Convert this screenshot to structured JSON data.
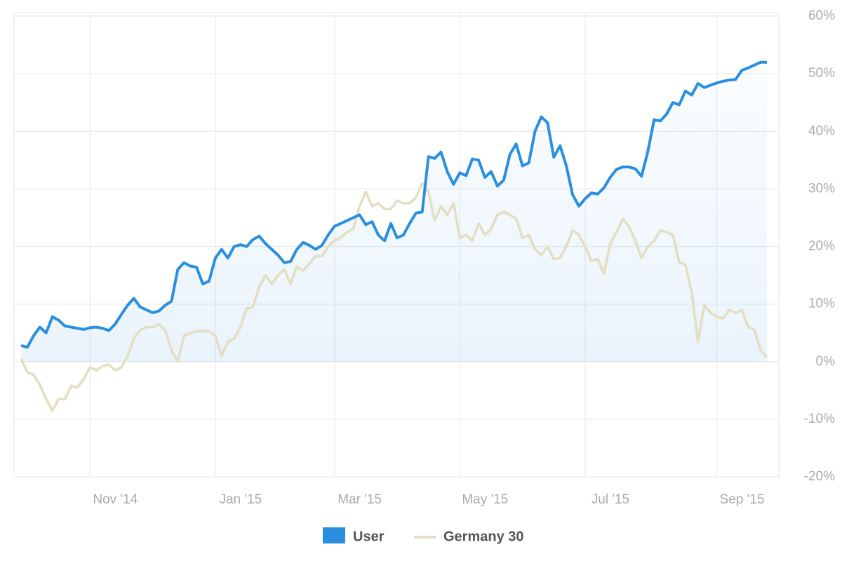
{
  "chart_data": {
    "type": "line",
    "categories": [
      null,
      null,
      null,
      null,
      null,
      null,
      null,
      null,
      null,
      null,
      null,
      "Nov '14",
      null,
      null,
      null,
      null,
      null,
      null,
      null,
      null,
      null,
      null,
      null,
      null,
      null,
      null,
      null,
      null,
      null,
      null,
      null,
      "Jan '15",
      null,
      null,
      null,
      null,
      null,
      null,
      null,
      null,
      null,
      null,
      null,
      null,
      null,
      null,
      null,
      null,
      null,
      null,
      "Mar '15",
      null,
      null,
      null,
      null,
      null,
      null,
      null,
      null,
      null,
      null,
      null,
      null,
      null,
      null,
      null,
      null,
      null,
      null,
      null,
      "May '15",
      null,
      null,
      null,
      null,
      null,
      null,
      null,
      null,
      null,
      null,
      null,
      null,
      null,
      null,
      null,
      null,
      null,
      null,
      null,
      "Jul '15",
      null,
      null,
      null,
      null,
      null,
      null,
      null,
      null,
      null,
      null,
      null,
      null,
      null,
      null,
      null,
      null,
      null,
      null,
      null,
      null,
      "Sep '15",
      null,
      null,
      null,
      null,
      null,
      null,
      null,
      null
    ],
    "series": [
      {
        "name": "User",
        "color": "#2b8fe0",
        "values": [
          2.8,
          2.5,
          4.5,
          6,
          5,
          7.8,
          7.2,
          6.2,
          6,
          5.8,
          5.6,
          5.9,
          6,
          5.8,
          5.4,
          6.5,
          8.2,
          9.8,
          11,
          9.5,
          9,
          8.5,
          8.8,
          9.8,
          10.5,
          16,
          17.2,
          16.6,
          16.4,
          13.5,
          14,
          18,
          19.5,
          18,
          20,
          20.3,
          20,
          21.2,
          21.8,
          20.5,
          19.5,
          18.5,
          17.2,
          17.4,
          19.5,
          20.7,
          20.2,
          19.5,
          20.2,
          22,
          23.5,
          24,
          24.5,
          25,
          25.5,
          23.8,
          24.3,
          22,
          21,
          24,
          21.5,
          22,
          24,
          25.8,
          26,
          35.6,
          35.3,
          36.4,
          33,
          30.8,
          32.8,
          32.3,
          35.2,
          35,
          32,
          33,
          30.5,
          31.5,
          36,
          37.8,
          34,
          34.5,
          40,
          42.5,
          41.5,
          35.5,
          37.5,
          34,
          29,
          27,
          28.3,
          29.3,
          29.1,
          30.2,
          32,
          33.4,
          33.8,
          33.8,
          33.5,
          32.2,
          36.5,
          42,
          41.8,
          43,
          45,
          44.6,
          47,
          46.3,
          48.3,
          47.6,
          48,
          48.4,
          48.7,
          48.9,
          49,
          50.6,
          51,
          51.5,
          52,
          52
        ]
      },
      {
        "name": "Germany 30",
        "color": "#e3ddc1",
        "values": [
          0.5,
          -1.8,
          -2.3,
          -4,
          -6.5,
          -8.5,
          -6.5,
          -6.5,
          -4.2,
          -4.5,
          -3,
          -1,
          -1.5,
          -0.8,
          -0.5,
          -1.5,
          -1,
          1,
          4,
          5.5,
          6,
          6,
          6.5,
          5.5,
          2,
          0,
          4.5,
          5,
          5.3,
          5.3,
          5.3,
          4.5,
          1,
          3.5,
          4,
          6,
          9.2,
          9.5,
          13,
          15,
          13.5,
          15,
          16,
          13.5,
          16.5,
          15.8,
          17,
          18.3,
          18.3,
          20,
          21,
          21.5,
          22.5,
          23,
          27,
          29.5,
          27,
          27.5,
          26.5,
          26.5,
          28,
          27.5,
          27.5,
          28.5,
          31,
          29.5,
          24.5,
          27,
          25.5,
          27.5,
          21.5,
          22,
          21,
          24,
          22,
          23,
          25.5,
          26,
          25.5,
          24.8,
          21.5,
          22,
          19.5,
          18.5,
          20,
          17.8,
          18,
          20,
          22.8,
          22,
          20,
          17.5,
          17.8,
          15.3,
          20.5,
          22.5,
          24.8,
          23.5,
          21,
          18,
          20,
          21,
          22.8,
          22.5,
          22,
          17.3,
          16.8,
          12,
          3.5,
          9.8,
          8.5,
          7.8,
          7.5,
          9,
          8.5,
          9,
          6,
          5.5,
          2,
          0.8
        ]
      }
    ],
    "ylim": [
      -20,
      60
    ],
    "yticks": [
      {
        "value": -20,
        "label": "-20%"
      },
      {
        "value": -10,
        "label": "-10%"
      },
      {
        "value": 0,
        "label": "0%"
      },
      {
        "value": 10,
        "label": "10%"
      },
      {
        "value": 20,
        "label": "20%"
      },
      {
        "value": 30,
        "label": "30%"
      },
      {
        "value": 40,
        "label": "40%"
      },
      {
        "value": 50,
        "label": "50%"
      },
      {
        "value": 60,
        "label": "60%"
      }
    ],
    "grid": true,
    "legend": "bottom"
  }
}
